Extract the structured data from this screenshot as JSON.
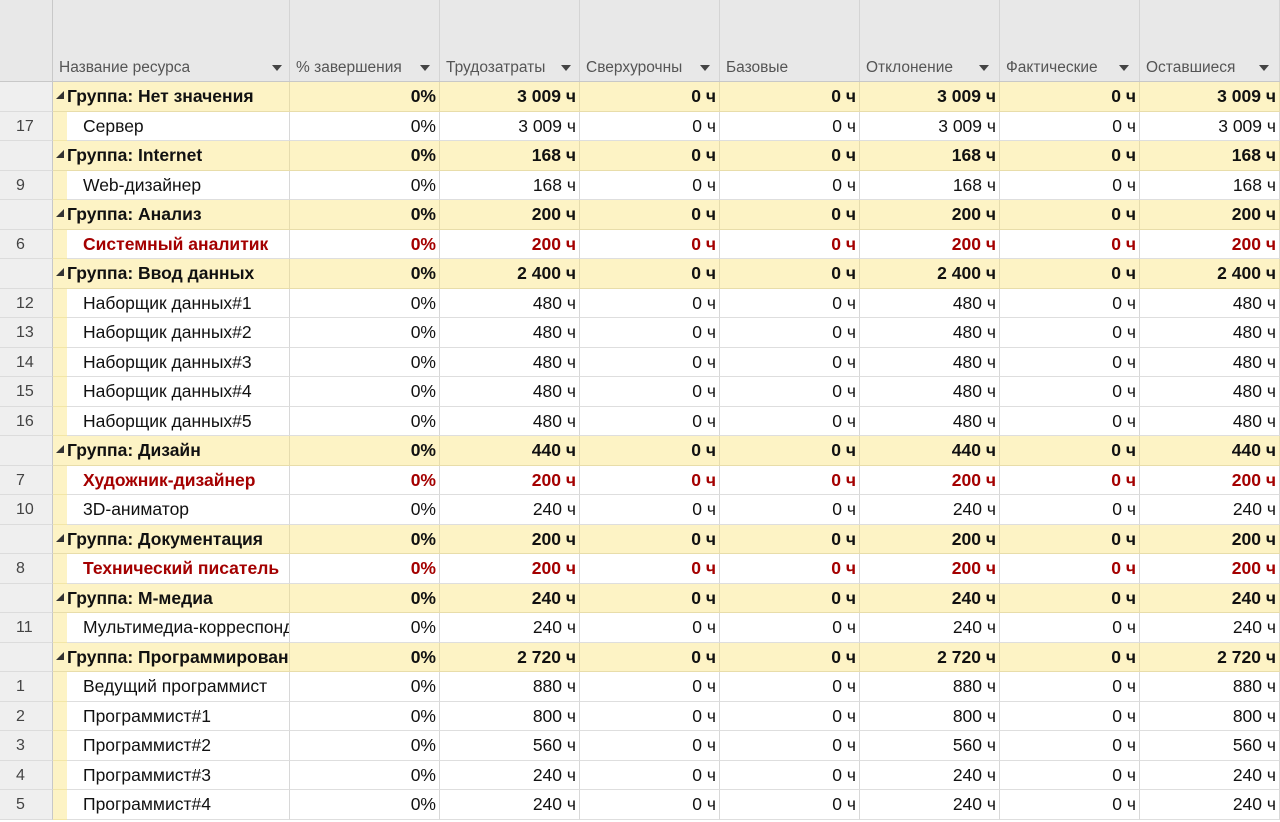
{
  "columns": [
    {
      "label": "Название ресурса",
      "dropdown": true
    },
    {
      "label": "% завершения",
      "dropdown": true
    },
    {
      "label": "Трудозатраты",
      "dropdown": true
    },
    {
      "label": "Сверхурочны",
      "dropdown": true
    },
    {
      "label": "Базовые",
      "dropdown": true
    },
    {
      "label": "Отклонение",
      "dropdown": true
    },
    {
      "label": "Фактические",
      "dropdown": true
    },
    {
      "label": "Оставшиеся",
      "dropdown": true
    }
  ],
  "rows": [
    {
      "type": "group",
      "num": "",
      "name": "Группа: Нет значения",
      "cells": [
        "0%",
        "3 009 ч",
        "0 ч",
        "0 ч",
        "3 009 ч",
        "0 ч",
        "3 009 ч"
      ]
    },
    {
      "type": "resource",
      "num": "17",
      "name": "Сервер",
      "cells": [
        "0%",
        "3 009 ч",
        "0 ч",
        "0 ч",
        "3 009 ч",
        "0 ч",
        "3 009 ч"
      ]
    },
    {
      "type": "group",
      "num": "",
      "name": "Группа: Internet",
      "cells": [
        "0%",
        "168 ч",
        "0 ч",
        "0 ч",
        "168 ч",
        "0 ч",
        "168 ч"
      ]
    },
    {
      "type": "resource",
      "num": "9",
      "name": "Web-дизайнер",
      "cells": [
        "0%",
        "168 ч",
        "0 ч",
        "0 ч",
        "168 ч",
        "0 ч",
        "168 ч"
      ]
    },
    {
      "type": "group",
      "num": "",
      "name": "Группа: Анализ",
      "cells": [
        "0%",
        "200 ч",
        "0 ч",
        "0 ч",
        "200 ч",
        "0 ч",
        "200 ч"
      ]
    },
    {
      "type": "resource",
      "critical": true,
      "num": "6",
      "name": "Системный аналитик",
      "cells": [
        "0%",
        "200 ч",
        "0 ч",
        "0 ч",
        "200 ч",
        "0 ч",
        "200 ч"
      ]
    },
    {
      "type": "group",
      "num": "",
      "name": "Группа: Ввод данных",
      "cells": [
        "0%",
        "2 400 ч",
        "0 ч",
        "0 ч",
        "2 400 ч",
        "0 ч",
        "2 400 ч"
      ]
    },
    {
      "type": "resource",
      "num": "12",
      "name": "Наборщик данных#1",
      "cells": [
        "0%",
        "480 ч",
        "0 ч",
        "0 ч",
        "480 ч",
        "0 ч",
        "480 ч"
      ]
    },
    {
      "type": "resource",
      "num": "13",
      "name": "Наборщик данных#2",
      "cells": [
        "0%",
        "480 ч",
        "0 ч",
        "0 ч",
        "480 ч",
        "0 ч",
        "480 ч"
      ]
    },
    {
      "type": "resource",
      "num": "14",
      "name": "Наборщик данных#3",
      "cells": [
        "0%",
        "480 ч",
        "0 ч",
        "0 ч",
        "480 ч",
        "0 ч",
        "480 ч"
      ]
    },
    {
      "type": "resource",
      "num": "15",
      "name": "Наборщик данных#4",
      "cells": [
        "0%",
        "480 ч",
        "0 ч",
        "0 ч",
        "480 ч",
        "0 ч",
        "480 ч"
      ]
    },
    {
      "type": "resource",
      "num": "16",
      "name": "Наборщик данных#5",
      "cells": [
        "0%",
        "480 ч",
        "0 ч",
        "0 ч",
        "480 ч",
        "0 ч",
        "480 ч"
      ]
    },
    {
      "type": "group",
      "num": "",
      "name": "Группа: Дизайн",
      "cells": [
        "0%",
        "440 ч",
        "0 ч",
        "0 ч",
        "440 ч",
        "0 ч",
        "440 ч"
      ]
    },
    {
      "type": "resource",
      "critical": true,
      "num": "7",
      "name": "Художник-дизайнер",
      "cells": [
        "0%",
        "200 ч",
        "0 ч",
        "0 ч",
        "200 ч",
        "0 ч",
        "200 ч"
      ]
    },
    {
      "type": "resource",
      "num": "10",
      "name": "3D-аниматор",
      "cells": [
        "0%",
        "240 ч",
        "0 ч",
        "0 ч",
        "240 ч",
        "0 ч",
        "240 ч"
      ]
    },
    {
      "type": "group",
      "num": "",
      "name": "Группа: Документация",
      "cells": [
        "0%",
        "200 ч",
        "0 ч",
        "0 ч",
        "200 ч",
        "0 ч",
        "200 ч"
      ]
    },
    {
      "type": "resource",
      "critical": true,
      "num": "8",
      "name": "Технический писатель",
      "cells": [
        "0%",
        "200 ч",
        "0 ч",
        "0 ч",
        "200 ч",
        "0 ч",
        "200 ч"
      ]
    },
    {
      "type": "group",
      "num": "",
      "name": "Группа: М-медиа",
      "cells": [
        "0%",
        "240 ч",
        "0 ч",
        "0 ч",
        "240 ч",
        "0 ч",
        "240 ч"
      ]
    },
    {
      "type": "resource",
      "num": "11",
      "name": "Мультимедиа-корреспондент",
      "cells": [
        "0%",
        "240 ч",
        "0 ч",
        "0 ч",
        "240 ч",
        "0 ч",
        "240 ч"
      ]
    },
    {
      "type": "group",
      "num": "",
      "name": "Группа: Программирование",
      "cells": [
        "0%",
        "2 720 ч",
        "0 ч",
        "0 ч",
        "2 720 ч",
        "0 ч",
        "2 720 ч"
      ]
    },
    {
      "type": "resource",
      "num": "1",
      "name": "Ведущий программист",
      "cells": [
        "0%",
        "880 ч",
        "0 ч",
        "0 ч",
        "880 ч",
        "0 ч",
        "880 ч"
      ]
    },
    {
      "type": "resource",
      "num": "2",
      "name": "Программист#1",
      "cells": [
        "0%",
        "800 ч",
        "0 ч",
        "0 ч",
        "800 ч",
        "0 ч",
        "800 ч"
      ]
    },
    {
      "type": "resource",
      "num": "3",
      "name": "Программист#2",
      "cells": [
        "0%",
        "560 ч",
        "0 ч",
        "0 ч",
        "560 ч",
        "0 ч",
        "560 ч"
      ]
    },
    {
      "type": "resource",
      "num": "4",
      "name": "Программист#3",
      "cells": [
        "0%",
        "240 ч",
        "0 ч",
        "0 ч",
        "240 ч",
        "0 ч",
        "240 ч"
      ]
    },
    {
      "type": "resource",
      "num": "5",
      "name": "Программист#4",
      "cells": [
        "0%",
        "240 ч",
        "0 ч",
        "0 ч",
        "240 ч",
        "0 ч",
        "240 ч"
      ]
    }
  ]
}
